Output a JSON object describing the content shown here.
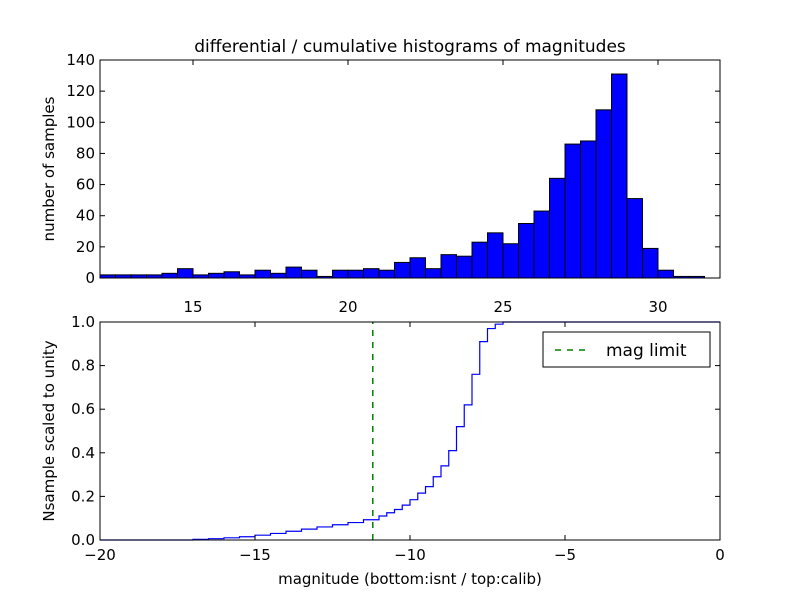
{
  "chart_data": [
    {
      "type": "bar",
      "title": "differential / cumulative histograms of magnitudes",
      "xlabel": "",
      "ylabel": "number of samples",
      "xlim": [
        12,
        32
      ],
      "ylim": [
        0,
        140
      ],
      "xticks": [
        "15",
        "20",
        "25",
        "30"
      ],
      "yticks": [
        "0",
        "20",
        "40",
        "60",
        "80",
        "100",
        "120",
        "140"
      ],
      "bar_color": "#0000ff",
      "bin_width": 0.5,
      "bins": [
        {
          "x": 12.0,
          "value": 2
        },
        {
          "x": 12.5,
          "value": 2
        },
        {
          "x": 13.0,
          "value": 2
        },
        {
          "x": 13.5,
          "value": 2
        },
        {
          "x": 14.0,
          "value": 3
        },
        {
          "x": 14.5,
          "value": 6
        },
        {
          "x": 15.0,
          "value": 2
        },
        {
          "x": 15.5,
          "value": 3
        },
        {
          "x": 16.0,
          "value": 4
        },
        {
          "x": 16.5,
          "value": 2
        },
        {
          "x": 17.0,
          "value": 5
        },
        {
          "x": 17.5,
          "value": 3
        },
        {
          "x": 18.0,
          "value": 7
        },
        {
          "x": 18.5,
          "value": 5
        },
        {
          "x": 19.0,
          "value": 1
        },
        {
          "x": 19.5,
          "value": 5
        },
        {
          "x": 20.0,
          "value": 5
        },
        {
          "x": 20.5,
          "value": 6
        },
        {
          "x": 21.0,
          "value": 5
        },
        {
          "x": 21.5,
          "value": 10
        },
        {
          "x": 22.0,
          "value": 13
        },
        {
          "x": 22.5,
          "value": 6
        },
        {
          "x": 23.0,
          "value": 15
        },
        {
          "x": 23.5,
          "value": 14
        },
        {
          "x": 24.0,
          "value": 23
        },
        {
          "x": 24.5,
          "value": 29
        },
        {
          "x": 25.0,
          "value": 22
        },
        {
          "x": 25.5,
          "value": 35
        },
        {
          "x": 26.0,
          "value": 43
        },
        {
          "x": 26.5,
          "value": 64
        },
        {
          "x": 27.0,
          "value": 86
        },
        {
          "x": 27.5,
          "value": 88
        },
        {
          "x": 28.0,
          "value": 108
        },
        {
          "x": 28.5,
          "value": 131
        },
        {
          "x": 29.0,
          "value": 51
        },
        {
          "x": 29.5,
          "value": 19
        },
        {
          "x": 30.0,
          "value": 5
        },
        {
          "x": 30.5,
          "value": 1
        },
        {
          "x": 31.0,
          "value": 1
        }
      ]
    },
    {
      "type": "line",
      "title": "",
      "xlabel": "magnitude (bottom:isnt / top:calib)",
      "ylabel": "Nsample scaled to unity",
      "xlim": [
        -20,
        0
      ],
      "ylim": [
        0,
        1
      ],
      "xticks": [
        "−20",
        "−15",
        "−10",
        "−5",
        "0"
      ],
      "yticks": [
        "0.0",
        "0.2",
        "0.4",
        "0.6",
        "0.8",
        "1.0"
      ],
      "legend_position": "top-right",
      "series": [
        {
          "color": "#0000ff",
          "step": true,
          "x": [
            -20.0,
            -17.0,
            -16.5,
            -16.0,
            -15.5,
            -15.0,
            -14.5,
            -14.0,
            -13.5,
            -13.0,
            -12.5,
            -12.0,
            -11.5,
            -11.0,
            -10.75,
            -10.5,
            -10.25,
            -10.0,
            -9.75,
            -9.5,
            -9.25,
            -9.0,
            -8.75,
            -8.5,
            -8.25,
            -8.0,
            -7.75,
            -7.5,
            -7.25,
            -7.0
          ],
          "y": [
            0.0,
            0.003,
            0.006,
            0.01,
            0.015,
            0.022,
            0.03,
            0.04,
            0.05,
            0.06,
            0.07,
            0.08,
            0.093,
            0.11,
            0.125,
            0.14,
            0.16,
            0.185,
            0.215,
            0.245,
            0.29,
            0.34,
            0.41,
            0.52,
            0.62,
            0.76,
            0.91,
            0.97,
            0.99,
            1.0
          ]
        },
        {
          "name": "mag limit",
          "color": "#008000",
          "dashed": true,
          "x": [
            -11.2,
            -11.2
          ],
          "y": [
            0,
            1
          ]
        }
      ]
    }
  ]
}
